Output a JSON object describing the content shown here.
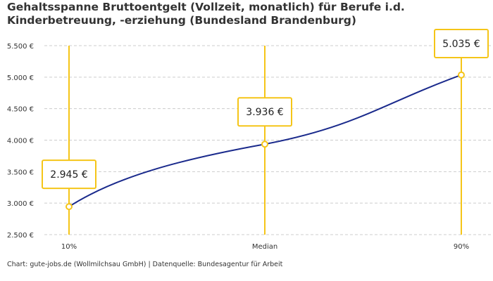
{
  "chart_data": {
    "type": "line",
    "title": "Gehaltsspanne Bruttoentgelt (Vollzeit, monatlich) für Berufe i.d. Kinderbetreuung, -erziehung (Bundesland Brandenburg)",
    "categories": [
      "10%",
      "Median",
      "90%"
    ],
    "values": [
      2945,
      3936,
      5035
    ],
    "data_labels": [
      "2.945 €",
      "3.936 €",
      "5.035 €"
    ],
    "y_ticks": [
      "2.500 €",
      "3.000 €",
      "3.500 €",
      "4.000 €",
      "4.500 €",
      "5.000 €",
      "5.500 €"
    ],
    "y_tick_values": [
      2500,
      3000,
      3500,
      4000,
      4500,
      5000,
      5500
    ],
    "ylim": [
      2500,
      5500
    ],
    "grid": true,
    "line_color": "#1a2a8c",
    "marker_color": "#f5c518"
  },
  "source": "Chart: gute-jobs.de (Wollmilchsau GmbH) | Datenquelle: Bundesagentur für Arbeit"
}
